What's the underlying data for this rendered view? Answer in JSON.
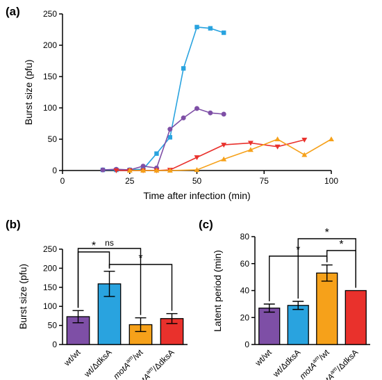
{
  "colors": {
    "blue": "#29a3df",
    "purple": "#7e4fa6",
    "red": "#e9312c",
    "orange": "#f6a11a",
    "axis": "#000000"
  },
  "panels": {
    "a": {
      "label": "(a)"
    },
    "b": {
      "label": "(b)"
    },
    "c": {
      "label": "(c)"
    }
  },
  "chart_data": [
    {
      "id": "a",
      "type": "line",
      "xlabel": "Time after infection (min)",
      "ylabel": "Burst size (pfu)",
      "xlim": [
        0,
        100
      ],
      "ylim": [
        0,
        250
      ],
      "xticks": [
        "0",
        "25",
        "50",
        "75",
        "100"
      ],
      "yticks": [
        "0",
        "50",
        "100",
        "150",
        "200",
        "250"
      ],
      "series": [
        {
          "color": "#29a3df",
          "marker": "square",
          "x": [
            15,
            20,
            25,
            30,
            35,
            40,
            45,
            50,
            55,
            60
          ],
          "y": [
            1,
            1,
            1,
            2,
            27,
            53,
            163,
            229,
            227,
            220
          ]
        },
        {
          "color": "#7e4fa6",
          "marker": "circle",
          "x": [
            15,
            20,
            25,
            30,
            35,
            40,
            45,
            50,
            55,
            60
          ],
          "y": [
            1,
            2,
            1,
            7,
            4,
            66,
            84,
            99,
            92,
            90
          ]
        },
        {
          "color": "#e9312c",
          "marker": "triangle-down",
          "x": [
            20,
            25,
            30,
            35,
            40,
            50,
            60,
            70,
            80,
            90
          ],
          "y": [
            0,
            0,
            0,
            0,
            1,
            21,
            41,
            44,
            38,
            49
          ]
        },
        {
          "color": "#f6a11a",
          "marker": "triangle-up",
          "x": [
            25,
            30,
            35,
            40,
            50,
            60,
            70,
            80,
            90,
            100
          ],
          "y": [
            0,
            0,
            0,
            0,
            1,
            18,
            33,
            50,
            25,
            50
          ]
        }
      ]
    },
    {
      "id": "b",
      "type": "bar",
      "ylabel": "Burst size (pfu)",
      "ylim": [
        0,
        250
      ],
      "yticks": [
        "0",
        "50",
        "100",
        "150",
        "200",
        "250"
      ],
      "categories": [
        "wt/wt",
        "wt/ΔdksA",
        "motA^am/wt",
        "motA^am/ΔdksA"
      ],
      "values": [
        73,
        159,
        52,
        68
      ],
      "errors": [
        16,
        33,
        18,
        13
      ],
      "bar_colors": [
        "#7e4fa6",
        "#29a3df",
        "#f6a11a",
        "#e9312c"
      ],
      "significance": [
        {
          "from": 0,
          "to": 2,
          "label": "ns"
        },
        {
          "from": 0,
          "to": 1,
          "label": "*"
        },
        {
          "from": 1,
          "to": 3,
          "label": "*"
        }
      ]
    },
    {
      "id": "c",
      "type": "bar",
      "ylabel": "Latent period (min)",
      "ylim": [
        0,
        80
      ],
      "yticks": [
        "0",
        "20",
        "40",
        "60",
        "80"
      ],
      "categories": [
        "wt/wt",
        "wt/ΔdksA",
        "motA^am/wt",
        "motA^am/ΔdksA"
      ],
      "values": [
        27,
        29,
        53,
        40
      ],
      "errors": [
        3,
        3,
        6,
        0
      ],
      "bar_colors": [
        "#7e4fa6",
        "#29a3df",
        "#f6a11a",
        "#e9312c"
      ],
      "significance": [
        {
          "from": 0,
          "to": 2,
          "label": "*"
        },
        {
          "from": 2,
          "to": 3,
          "label": "*"
        },
        {
          "from": 1,
          "to": 3,
          "label": "*"
        }
      ]
    }
  ]
}
